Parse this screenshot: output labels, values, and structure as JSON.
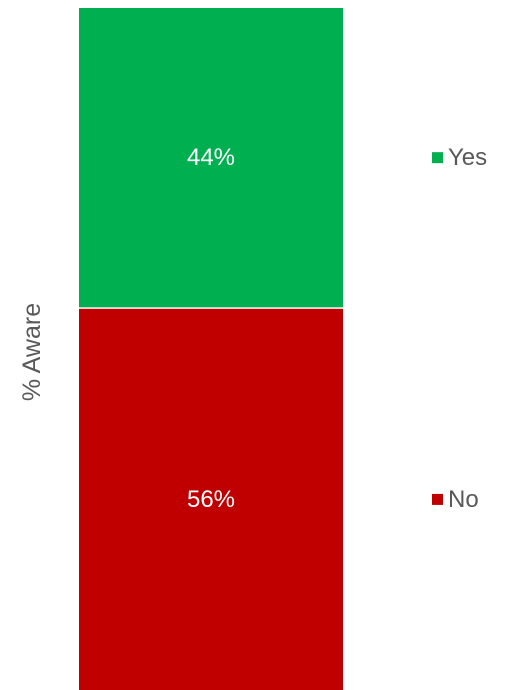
{
  "chart_data": {
    "type": "bar",
    "stacked": true,
    "orientation": "vertical",
    "title": "",
    "xlabel": "",
    "ylabel": "% Aware",
    "ylim": [
      0,
      100
    ],
    "unit": "%",
    "grid": false,
    "legend_position": "right",
    "categories": [
      ""
    ],
    "series": [
      {
        "name": "No",
        "values": [
          56
        ],
        "label": "56%",
        "color": "#C00000"
      },
      {
        "name": "Yes",
        "values": [
          44
        ],
        "label": "44%",
        "color": "#00B050"
      }
    ]
  }
}
